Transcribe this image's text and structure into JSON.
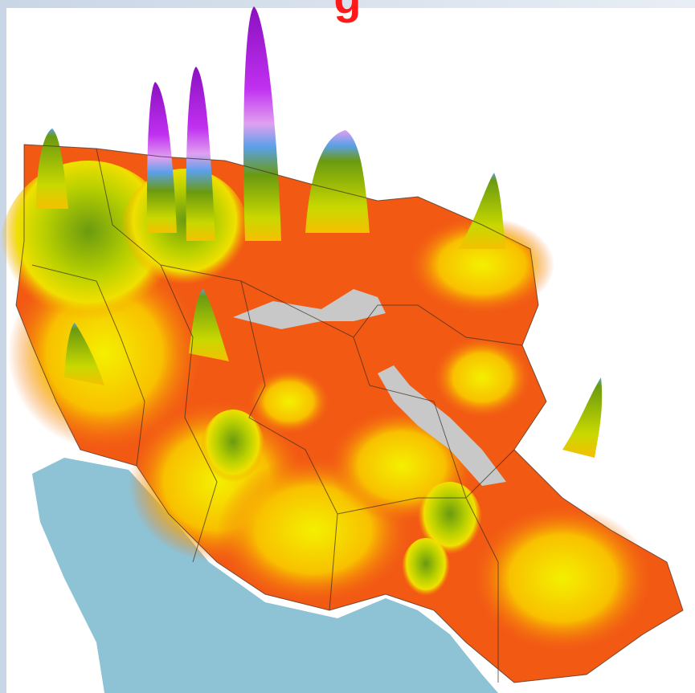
{
  "header": {
    "title": "g"
  }
}
